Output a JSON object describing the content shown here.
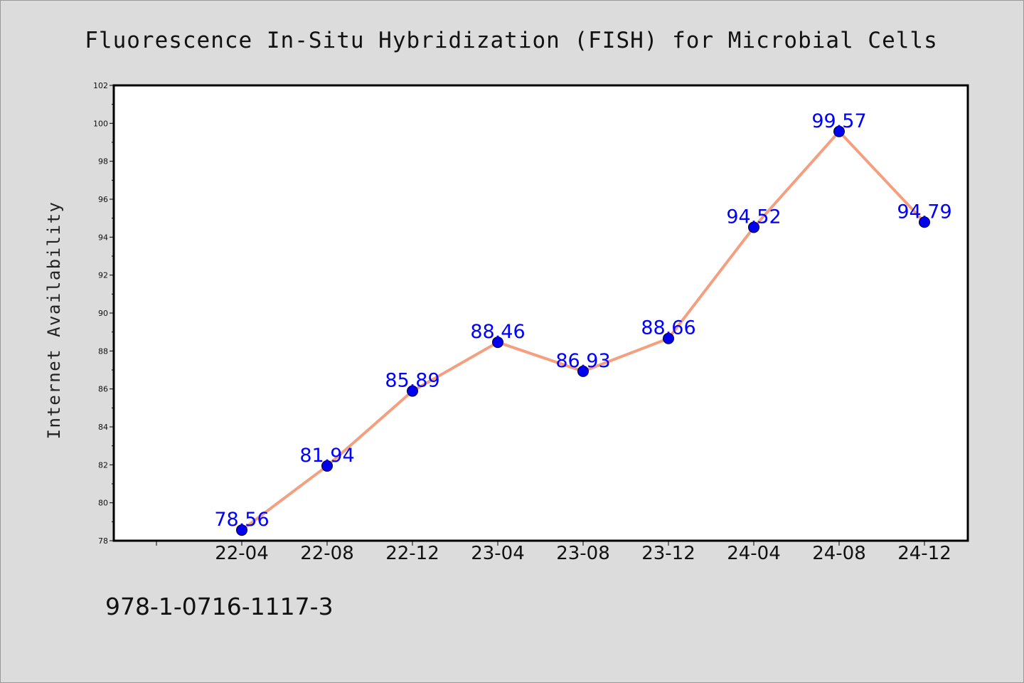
{
  "chart_data": {
    "type": "line",
    "title": "Fluorescence In-Situ Hybridization (FISH) for Microbial Cells",
    "xlabel": "",
    "ylabel": "Internet Availability",
    "categories": [
      "22-04",
      "22-08",
      "22-12",
      "23-04",
      "23-08",
      "23-12",
      "24-04",
      "24-08",
      "24-12"
    ],
    "series": [
      {
        "values": [
          78.56,
          81.94,
          85.89,
          88.46,
          86.93,
          88.66,
          94.52,
          99.57,
          94.79
        ],
        "labels": [
          "78.56",
          "81.94",
          "85.89",
          "88.46",
          "86.93",
          "88.66",
          "94.52",
          "99.57",
          "94.79"
        ]
      }
    ],
    "ylim": [
      78,
      102
    ],
    "yticks": [
      "78",
      "80",
      "82",
      "84",
      "86",
      "88",
      "90",
      "92",
      "94",
      "96",
      "98",
      "100",
      "102"
    ],
    "grid": false,
    "legend": "none",
    "colors": {
      "line": "#f4a080",
      "marker": "#0000ee",
      "label": "#0000ff",
      "background": "#dcdcdc",
      "plot_background": "#ffffff"
    }
  },
  "footer": {
    "isbn": "978-1-0716-1117-3"
  }
}
